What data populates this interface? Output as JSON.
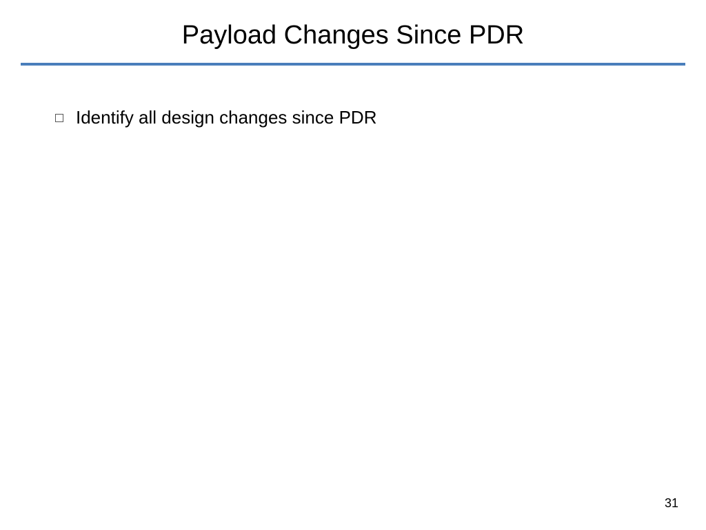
{
  "slide": {
    "title": "Payload Changes Since PDR",
    "title_fontsize": 38,
    "title_color": "#000000",
    "divider_color": "#4a7ebb",
    "divider_thickness": 4,
    "background_color": "#ffffff",
    "bullets": [
      {
        "text": "Identify all design changes since PDR",
        "fontsize": 26,
        "color": "#000000",
        "marker_border_color": "#555555"
      }
    ],
    "page_number": "31",
    "page_number_fontsize": 18
  }
}
